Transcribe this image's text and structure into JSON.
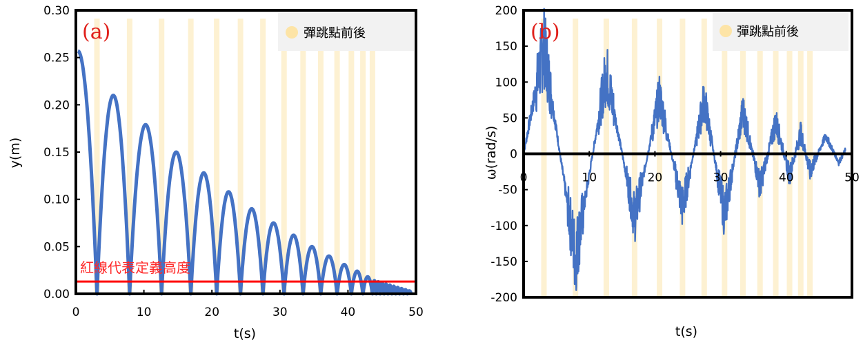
{
  "chart_data": [
    {
      "type": "line",
      "panel_label": "(a)",
      "xlabel": "t(s)",
      "ylabel": "y(m)",
      "xlim": [
        0,
        50
      ],
      "ylim": [
        0,
        0.3
      ],
      "x_ticks": [
        0,
        10,
        20,
        30,
        40,
        50
      ],
      "x_tick_labels": [
        "0",
        "10",
        "20",
        "30",
        "40",
        "50"
      ],
      "y_ticks": [
        0,
        0.05,
        0.1,
        0.15,
        0.2,
        0.25,
        0.3
      ],
      "y_tick_labels": [
        "0.00",
        "0.05",
        "0.10",
        "0.15",
        "0.20",
        "0.25",
        "0.30"
      ],
      "legend": {
        "label": "彈跳點前後",
        "position": "top-right"
      },
      "annotation": {
        "text": "紅線代表定義高度",
        "threshold_y": 0.013,
        "color": "#ff0000"
      },
      "bounce_times": [
        3.1,
        7.9,
        12.6,
        16.9,
        20.7,
        24.2,
        27.5,
        30.6,
        33.4,
        36.0,
        38.4,
        40.5,
        42.2,
        43.6
      ],
      "start": {
        "t": 0.3,
        "y": 0.257
      },
      "arcs": [
        {
          "t_start": 3.1,
          "t_end": 7.9,
          "peak": 0.21
        },
        {
          "t_start": 7.9,
          "t_end": 12.6,
          "peak": 0.179
        },
        {
          "t_start": 12.6,
          "t_end": 16.9,
          "peak": 0.15
        },
        {
          "t_start": 16.9,
          "t_end": 20.7,
          "peak": 0.128
        },
        {
          "t_start": 20.7,
          "t_end": 24.2,
          "peak": 0.108
        },
        {
          "t_start": 24.2,
          "t_end": 27.5,
          "peak": 0.09
        },
        {
          "t_start": 27.5,
          "t_end": 30.6,
          "peak": 0.075
        },
        {
          "t_start": 30.6,
          "t_end": 33.4,
          "peak": 0.062
        },
        {
          "t_start": 33.4,
          "t_end": 36.0,
          "peak": 0.05
        },
        {
          "t_start": 36.0,
          "t_end": 38.4,
          "peak": 0.04
        },
        {
          "t_start": 38.4,
          "t_end": 40.5,
          "peak": 0.031
        },
        {
          "t_start": 40.5,
          "t_end": 42.2,
          "peak": 0.024
        },
        {
          "t_start": 42.2,
          "t_end": 43.6,
          "peak": 0.018
        }
      ],
      "tail_end_t": 49.3,
      "colors": {
        "line": "#4472c4",
        "band": "#fdf1d2",
        "threshold": "#ff0000"
      }
    },
    {
      "type": "line",
      "panel_label": "(b)",
      "xlabel": "t(s)",
      "ylabel": "ω(rad/s)",
      "xlim": [
        0,
        50
      ],
      "ylim": [
        -200,
        200
      ],
      "x_ticks": [
        0,
        10,
        20,
        30,
        40,
        50
      ],
      "x_tick_labels": [
        "0",
        "10",
        "20",
        "30",
        "40",
        "50"
      ],
      "y_ticks": [
        -200,
        -150,
        -100,
        -50,
        0,
        50,
        100,
        150,
        200
      ],
      "y_tick_labels": [
        "-200",
        "-150",
        "-100",
        "-50",
        "0",
        "50",
        "100",
        "150",
        "200"
      ],
      "legend": {
        "label": "彈跳點前後",
        "position": "top-right"
      },
      "bounce_times": [
        3.1,
        7.9,
        12.6,
        16.9,
        20.7,
        24.2,
        27.5,
        30.6,
        33.4,
        36.0,
        38.4,
        40.5,
        42.2,
        43.6
      ],
      "envelope_knots": [
        {
          "t": 0.0,
          "v": 0
        },
        {
          "t": 3.1,
          "v": 150
        },
        {
          "t": 7.9,
          "v": -145
        },
        {
          "t": 12.6,
          "v": 115
        },
        {
          "t": 16.9,
          "v": -90
        },
        {
          "t": 20.7,
          "v": 80
        },
        {
          "t": 24.2,
          "v": -75
        },
        {
          "t": 27.5,
          "v": 75
        },
        {
          "t": 30.6,
          "v": -85
        },
        {
          "t": 33.4,
          "v": 60
        },
        {
          "t": 36.0,
          "v": -45
        },
        {
          "t": 38.4,
          "v": 45
        },
        {
          "t": 40.5,
          "v": -30
        },
        {
          "t": 42.2,
          "v": 30
        },
        {
          "t": 43.6,
          "v": -25
        },
        {
          "t": 46.0,
          "v": 25
        },
        {
          "t": 48.0,
          "v": -12
        },
        {
          "t": 49.0,
          "v": 5
        }
      ],
      "colors": {
        "line": "#4472c4",
        "band": "#fdf1d2",
        "zero_line": "#000000"
      }
    }
  ]
}
